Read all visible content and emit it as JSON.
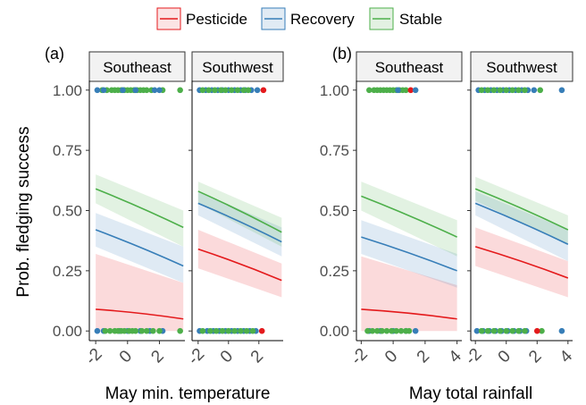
{
  "legend": [
    {
      "name": "Pesticide",
      "color": "#e41a1c"
    },
    {
      "name": "Recovery",
      "color": "#377eb8"
    },
    {
      "name": "Stable",
      "color": "#4daf4a"
    }
  ],
  "y_axis_title": "Prob. fledging success",
  "y_ticks": [
    "0.00",
    "0.25",
    "0.50",
    "0.75",
    "1.00"
  ],
  "panel_tags": [
    "(a)",
    "(b)"
  ],
  "x_titles": [
    "May min. temperature",
    "May total rainfall"
  ],
  "chart_data": [
    {
      "type": "line",
      "tag": "(a)",
      "xlabel": "May min. temperature",
      "ylabel": "Prob. fledging success",
      "ylim": [
        -0.04,
        1.04
      ],
      "panels": [
        {
          "strip": "Southeast",
          "xlim": [
            -2.4,
            3.6
          ],
          "xticks": [
            -2,
            0,
            2
          ],
          "series": [
            {
              "name": "Pesticide",
              "x": [
                -2.0,
                3.5
              ],
              "y": [
                0.09,
                0.05
              ],
              "lower": [
                0.0,
                0.0
              ],
              "upper": [
                0.32,
                0.2
              ]
            },
            {
              "name": "Recovery",
              "x": [
                -2.0,
                3.5
              ],
              "y": [
                0.42,
                0.27
              ],
              "lower": [
                0.35,
                0.2
              ],
              "upper": [
                0.49,
                0.35
              ]
            },
            {
              "name": "Stable",
              "x": [
                -2.0,
                3.5
              ],
              "y": [
                0.59,
                0.43
              ],
              "lower": [
                0.53,
                0.35
              ],
              "upper": [
                0.65,
                0.5
              ]
            }
          ],
          "obs_top": {
            "Stable": [
              -1.6,
              -1.3,
              -1.0,
              -0.8,
              -0.6,
              -0.4,
              -0.2,
              0.0,
              0.2,
              0.4,
              0.6,
              0.8,
              1.0,
              1.2,
              1.5,
              2.2,
              3.3
            ],
            "Recovery": [
              -1.9,
              -1.5,
              -0.3,
              0.5,
              1.7,
              2.0
            ]
          },
          "obs_bottom": {
            "Recovery": [
              -1.9,
              -1.5,
              -0.5,
              0.0,
              0.8,
              1.4,
              2.2
            ],
            "Stable": [
              -1.4,
              -1.1,
              -0.8,
              -0.6,
              -0.4,
              -0.2,
              0.1,
              0.3,
              0.5,
              0.9,
              1.2,
              1.6,
              2.0,
              3.3
            ]
          }
        },
        {
          "strip": "Southwest",
          "xlim": [
            -2.4,
            3.6
          ],
          "xticks": [
            -2,
            0,
            2
          ],
          "series": [
            {
              "name": "Pesticide",
              "x": [
                -2.0,
                3.5
              ],
              "y": [
                0.34,
                0.21
              ],
              "lower": [
                0.26,
                0.14
              ],
              "upper": [
                0.42,
                0.28
              ]
            },
            {
              "name": "Recovery",
              "x": [
                -2.0,
                3.5
              ],
              "y": [
                0.53,
                0.37
              ],
              "lower": [
                0.48,
                0.31
              ],
              "upper": [
                0.58,
                0.43
              ]
            },
            {
              "name": "Stable",
              "x": [
                -2.0,
                3.5
              ],
              "y": [
                0.58,
                0.41
              ],
              "lower": [
                0.53,
                0.35
              ],
              "upper": [
                0.62,
                0.47
              ]
            }
          ],
          "obs_top": {
            "Recovery": [
              -1.9,
              -1.5,
              -1.1,
              -0.7,
              -0.4,
              0.0,
              0.4,
              0.8,
              1.1,
              1.5,
              1.9
            ],
            "Stable": [
              -1.7,
              -1.3,
              -0.9,
              -0.5,
              -0.2,
              0.2,
              0.6,
              1.0,
              1.3
            ],
            "Pesticide": [
              2.3
            ]
          },
          "obs_bottom": {
            "Recovery": [
              -1.9,
              -1.4,
              -1.0,
              -0.6,
              -0.2,
              0.2,
              0.6,
              1.0,
              1.4,
              1.8
            ],
            "Stable": [
              -1.7,
              -1.2,
              -0.8,
              -0.4,
              0.0,
              0.4,
              0.8,
              1.2,
              1.6
            ],
            "Pesticide": [
              2.2
            ]
          }
        }
      ]
    },
    {
      "type": "line",
      "tag": "(b)",
      "xlabel": "May total rainfall",
      "ylabel": "Prob. fledging success",
      "ylim": [
        -0.04,
        1.04
      ],
      "panels": [
        {
          "strip": "Southeast",
          "xlim": [
            -2.3,
            4.3
          ],
          "xticks": [
            -2,
            0,
            2,
            4
          ],
          "series": [
            {
              "name": "Pesticide",
              "x": [
                -2.0,
                4.0
              ],
              "y": [
                0.09,
                0.05
              ],
              "lower": [
                0.0,
                0.0
              ],
              "upper": [
                0.31,
                0.19
              ]
            },
            {
              "name": "Recovery",
              "x": [
                -2.0,
                4.0
              ],
              "y": [
                0.39,
                0.25
              ],
              "lower": [
                0.32,
                0.18
              ],
              "upper": [
                0.46,
                0.32
              ]
            },
            {
              "name": "Stable",
              "x": [
                -2.0,
                4.0
              ],
              "y": [
                0.56,
                0.39
              ],
              "lower": [
                0.5,
                0.31
              ],
              "upper": [
                0.62,
                0.46
              ]
            }
          ],
          "obs_top": {
            "Stable": [
              -1.5,
              -1.2,
              -1.0,
              -0.8,
              -0.6,
              -0.4,
              -0.2,
              0.0,
              0.2,
              0.4,
              0.6,
              0.8
            ],
            "Pesticide": [
              1.1
            ],
            "Recovery": [
              0.3,
              1.4
            ]
          },
          "obs_bottom": {
            "Recovery": [
              -1.5,
              -0.8,
              0.0,
              0.8,
              1.4
            ],
            "Stable": [
              -1.6,
              -1.3,
              -1.0,
              -0.7,
              -0.4,
              -0.1,
              0.2,
              0.5,
              0.8,
              1.0
            ]
          }
        },
        {
          "strip": "Southwest",
          "xlim": [
            -2.3,
            4.3
          ],
          "xticks": [
            -2,
            0,
            2,
            4
          ],
          "series": [
            {
              "name": "Pesticide",
              "x": [
                -2.0,
                4.0
              ],
              "y": [
                0.35,
                0.22
              ],
              "lower": [
                0.27,
                0.14
              ],
              "upper": [
                0.43,
                0.29
              ]
            },
            {
              "name": "Recovery",
              "x": [
                -2.0,
                4.0
              ],
              "y": [
                0.53,
                0.36
              ],
              "lower": [
                0.48,
                0.29
              ],
              "upper": [
                0.58,
                0.42
              ]
            },
            {
              "name": "Stable",
              "x": [
                -2.0,
                4.0
              ],
              "y": [
                0.59,
                0.42
              ],
              "lower": [
                0.54,
                0.36
              ],
              "upper": [
                0.64,
                0.48
              ]
            }
          ],
          "obs_top": {
            "Recovery": [
              -1.8,
              -1.4,
              -1.0,
              -0.6,
              -0.2,
              0.2,
              0.6,
              1.0,
              1.4,
              1.8,
              3.6
            ],
            "Stable": [
              -1.6,
              -1.2,
              -0.8,
              -0.4,
              0.0,
              0.4,
              0.8,
              1.2,
              2.2
            ]
          },
          "obs_bottom": {
            "Recovery": [
              -1.9,
              -1.5,
              -1.1,
              -0.7,
              -0.3,
              0.1,
              0.5,
              0.9,
              1.3,
              3.6
            ],
            "Stable": [
              -1.6,
              -1.2,
              -0.8,
              -0.4,
              0.0,
              0.4,
              0.8,
              1.2,
              2.3
            ],
            "Pesticide": [
              2.0
            ]
          }
        }
      ]
    }
  ]
}
